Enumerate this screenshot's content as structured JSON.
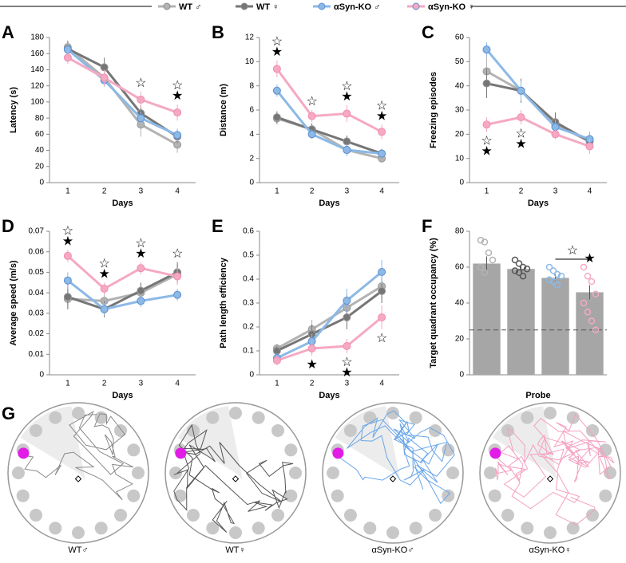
{
  "legend": {
    "series": [
      {
        "name": "WT ♂",
        "color": "#b3b3b3"
      },
      {
        "name": "WT ♀",
        "color": "#767676"
      },
      {
        "name": "αSyn-KO ♂",
        "color": "#8cb9e6"
      },
      {
        "name": "αSyn-KO ♀",
        "color": "#f5a9c3"
      }
    ]
  },
  "chart_data": [
    {
      "label": "A",
      "type": "line",
      "ylabel": "Latency (s)",
      "xlabel": "Days",
      "categories": [
        "1",
        "2",
        "3",
        "4"
      ],
      "ylim": [
        0,
        180
      ],
      "yticks": [
        0,
        20,
        40,
        60,
        80,
        100,
        120,
        140,
        160,
        180
      ],
      "series": [
        {
          "values": [
            168,
            130,
            72,
            47
          ],
          "errors": [
            8,
            10,
            15,
            10
          ]
        },
        {
          "values": [
            166,
            143,
            86,
            57
          ],
          "errors": [
            10,
            12,
            10,
            8
          ]
        },
        {
          "values": [
            165,
            127,
            80,
            59
          ],
          "errors": [
            8,
            8,
            8,
            8
          ]
        },
        {
          "values": [
            155,
            130,
            103,
            87
          ],
          "errors": [
            8,
            10,
            10,
            10
          ]
        }
      ],
      "annotations": [
        {
          "category": 2,
          "text": "☆"
        },
        {
          "category": 3,
          "text": "☆"
        },
        {
          "category": 3,
          "text": "★"
        }
      ]
    },
    {
      "label": "B",
      "type": "line",
      "ylabel": "Distance (m)",
      "xlabel": "Days",
      "categories": [
        "1",
        "2",
        "3",
        "4"
      ],
      "ylim": [
        0,
        12
      ],
      "yticks": [
        0,
        2,
        4,
        6,
        8,
        10,
        12
      ],
      "series": [
        {
          "values": [
            5.3,
            4.4,
            2.7,
            2.0
          ],
          "errors": [
            0.5,
            0.4,
            0.4,
            0.3
          ]
        },
        {
          "values": [
            5.4,
            4.4,
            3.4,
            2.4
          ],
          "errors": [
            0.5,
            0.5,
            0.5,
            0.4
          ]
        },
        {
          "values": [
            7.6,
            4.0,
            2.7,
            2.4
          ],
          "errors": [
            0.5,
            0.4,
            0.5,
            0.4
          ]
        },
        {
          "values": [
            9.4,
            5.5,
            5.7,
            4.2
          ],
          "errors": [
            0.7,
            0.5,
            0.7,
            0.6
          ]
        }
      ],
      "annotations": [
        {
          "category": 0,
          "text": "☆"
        },
        {
          "category": 0,
          "text": "★"
        },
        {
          "category": 1,
          "text": "☆"
        },
        {
          "category": 2,
          "text": "☆"
        },
        {
          "category": 2,
          "text": "★"
        },
        {
          "category": 3,
          "text": "☆"
        },
        {
          "category": 3,
          "text": "★"
        }
      ]
    },
    {
      "label": "C",
      "type": "line",
      "ylabel": "Freezing episodes",
      "xlabel": "Days",
      "categories": [
        "1",
        "2",
        "3",
        "4"
      ],
      "ylim": [
        0,
        60
      ],
      "yticks": [
        0,
        10,
        20,
        30,
        40,
        50,
        60
      ],
      "series": [
        {
          "values": [
            46,
            38,
            24,
            17
          ],
          "errors": [
            6,
            5,
            4,
            3
          ]
        },
        {
          "values": [
            41,
            38,
            25,
            17
          ],
          "errors": [
            6,
            5,
            4,
            3
          ]
        },
        {
          "values": [
            55,
            38,
            23,
            18
          ],
          "errors": [
            3,
            4,
            3,
            3
          ]
        },
        {
          "values": [
            24,
            27,
            20,
            15
          ],
          "errors": [
            3,
            3,
            2,
            3
          ]
        }
      ],
      "annotations": [
        {
          "category": 0,
          "text": "☆"
        },
        {
          "category": 0,
          "text": "★"
        },
        {
          "category": 1,
          "text": "☆"
        },
        {
          "category": 1,
          "text": "★"
        }
      ]
    },
    {
      "label": "D",
      "type": "line",
      "ylabel": "Average speed (m/s)",
      "xlabel": "Days",
      "categories": [
        "1",
        "2",
        "3",
        "4"
      ],
      "ylim": [
        0,
        0.07
      ],
      "yticks": [
        0,
        0.01,
        0.02,
        0.03,
        0.04,
        0.05,
        0.06,
        0.07
      ],
      "series": [
        {
          "values": [
            0.037,
            0.036,
            0.04,
            0.049
          ],
          "errors": [
            0.005,
            0.004,
            0.004,
            0.005
          ]
        },
        {
          "values": [
            0.038,
            0.032,
            0.041,
            0.05
          ],
          "errors": [
            0.006,
            0.004,
            0.004,
            0.005
          ]
        },
        {
          "values": [
            0.046,
            0.032,
            0.036,
            0.039
          ],
          "errors": [
            0.004,
            0.003,
            0.003,
            0.003
          ]
        },
        {
          "values": [
            0.058,
            0.042,
            0.052,
            0.048
          ],
          "errors": [
            0.003,
            0.003,
            0.003,
            0.004
          ]
        }
      ],
      "annotations": [
        {
          "category": 0,
          "text": "☆"
        },
        {
          "category": 0,
          "text": "★"
        },
        {
          "category": 1,
          "text": "☆"
        },
        {
          "category": 1,
          "text": "★"
        },
        {
          "category": 2,
          "text": "☆"
        },
        {
          "category": 2,
          "text": "★"
        },
        {
          "category": 3,
          "text": "☆"
        }
      ]
    },
    {
      "label": "E",
      "type": "line",
      "ylabel": "Path length efficiency",
      "xlabel": "Days",
      "categories": [
        "1",
        "2",
        "3",
        "4"
      ],
      "ylim": [
        0,
        0.6
      ],
      "yticks": [
        0,
        0.1,
        0.2,
        0.3,
        0.4,
        0.5,
        0.6
      ],
      "series": [
        {
          "values": [
            0.11,
            0.19,
            0.28,
            0.37
          ],
          "errors": [
            0.02,
            0.04,
            0.06,
            0.05
          ]
        },
        {
          "values": [
            0.1,
            0.17,
            0.24,
            0.35
          ],
          "errors": [
            0.02,
            0.04,
            0.05,
            0.05
          ]
        },
        {
          "values": [
            0.07,
            0.14,
            0.31,
            0.43
          ],
          "errors": [
            0.02,
            0.03,
            0.05,
            0.05
          ]
        },
        {
          "values": [
            0.06,
            0.11,
            0.12,
            0.24
          ],
          "errors": [
            0.02,
            0.03,
            0.03,
            0.05
          ]
        }
      ],
      "annotations": [
        {
          "category": 1,
          "text": "★"
        },
        {
          "category": 2,
          "text": "☆"
        },
        {
          "category": 2,
          "text": "★"
        },
        {
          "category": 3,
          "text": "☆"
        }
      ]
    },
    {
      "label": "F",
      "type": "bar",
      "ylabel": "Target quadrant occupancy (%)",
      "xlabel": "Probe",
      "ylim": [
        0,
        80
      ],
      "yticks": [
        0,
        20,
        40,
        60,
        80
      ],
      "color": "#a6a6a6",
      "reference_line": 25,
      "values": [
        62,
        59,
        54,
        46
      ],
      "errors": [
        4,
        2,
        2,
        4
      ],
      "points": [
        [
          75,
          74,
          68,
          64,
          60,
          57
        ],
        [
          64,
          62,
          60,
          59,
          58,
          57,
          55
        ],
        [
          60,
          58,
          56,
          55,
          53,
          52,
          50
        ],
        [
          60,
          55,
          52,
          45,
          40,
          35,
          30,
          25
        ]
      ],
      "annotations": [
        {
          "bars": [
            2,
            3
          ],
          "text": "☆"
        },
        {
          "bars": [
            3
          ],
          "text": "★"
        }
      ]
    }
  ],
  "panel_g": {
    "label": "G",
    "arenas": [
      "WT♂",
      "WT♀",
      "αSyn-KO♂",
      "αSyn-KO♀"
    ]
  }
}
